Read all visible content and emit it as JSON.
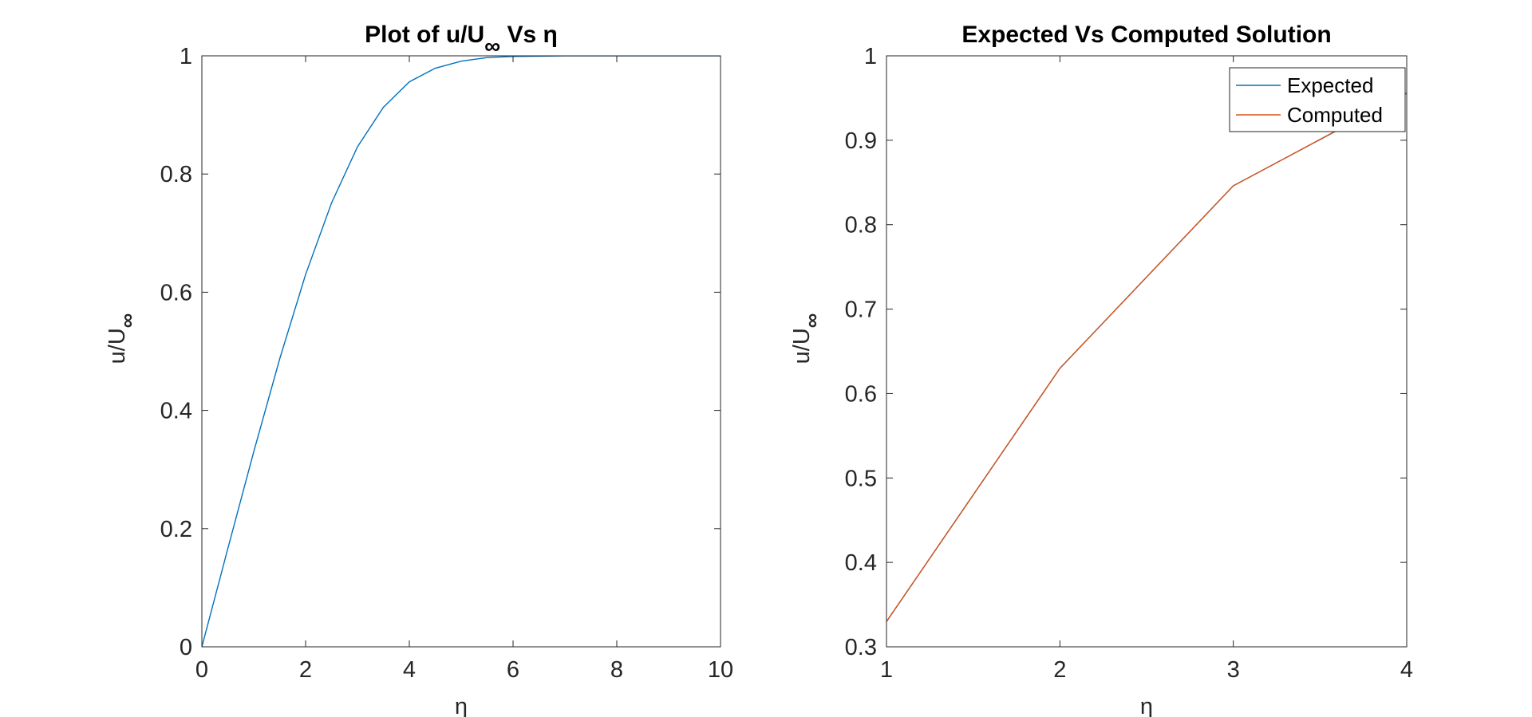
{
  "chart_data": [
    {
      "type": "line",
      "title": "Plot of u/U∞ Vs η",
      "title_parts": {
        "main": "Plot of u/U",
        "subscript": "∞",
        "suffix": " Vs η"
      },
      "xlabel": "η",
      "ylabel": "u/U∞",
      "ylabel_parts": {
        "main": "u/U",
        "subscript": "∞"
      },
      "xlim": [
        0,
        10
      ],
      "ylim": [
        0,
        1
      ],
      "xticks": [
        "0",
        "2",
        "4",
        "6",
        "8",
        "10"
      ],
      "yticks": [
        "0",
        "0.2",
        "0.4",
        "0.6",
        "0.8",
        "1"
      ],
      "grid": false,
      "series": [
        {
          "color": "#0072BD",
          "x": [
            0,
            0.5,
            1,
            1.5,
            2,
            2.5,
            3,
            3.5,
            4,
            4.5,
            5,
            5.5,
            6,
            7,
            8,
            9,
            10
          ],
          "y": [
            0,
            0.166,
            0.33,
            0.487,
            0.63,
            0.751,
            0.846,
            0.913,
            0.956,
            0.979,
            0.991,
            0.997,
            0.999,
            1.0,
            1.0,
            1.0,
            1.0
          ]
        }
      ]
    },
    {
      "type": "line",
      "title": "Expected Vs Computed Solution",
      "xlabel": "η",
      "ylabel": "u/U∞",
      "ylabel_parts": {
        "main": "u/U",
        "subscript": "∞"
      },
      "xlim": [
        1,
        4
      ],
      "ylim": [
        0.3,
        1
      ],
      "xticks": [
        "1",
        "2",
        "3",
        "4"
      ],
      "yticks": [
        "0.3",
        "0.4",
        "0.5",
        "0.6",
        "0.7",
        "0.8",
        "0.9",
        "1"
      ],
      "grid": false,
      "legend": {
        "position": "top-right",
        "entries": [
          "Expected",
          "Computed"
        ]
      },
      "series": [
        {
          "name": "Expected",
          "color": "#0072BD",
          "x": [
            1,
            2,
            3,
            4
          ],
          "y": [
            0.3298,
            0.6298,
            0.8461,
            0.9555
          ]
        },
        {
          "name": "Computed",
          "color": "#D95319",
          "x": [
            1,
            2,
            3,
            4
          ],
          "y": [
            0.33,
            0.63,
            0.846,
            0.956
          ]
        }
      ]
    }
  ]
}
